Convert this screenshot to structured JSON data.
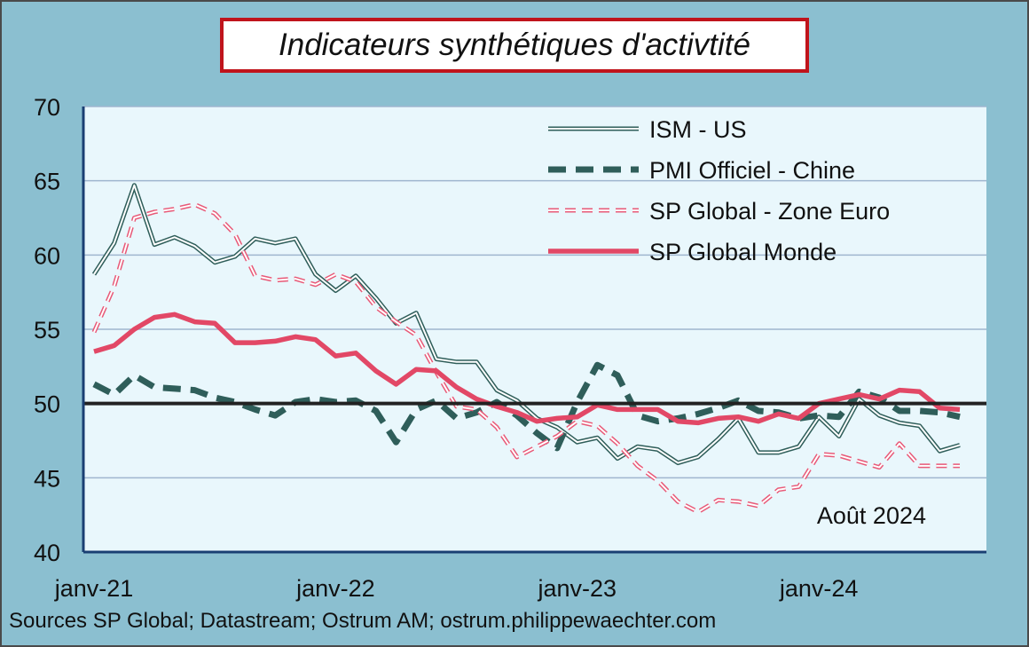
{
  "title": "Indicateurs synthétiques d'activtité",
  "source": "Sources SP Global; Datastream; Ostrum AM; ostrum.philippewaechter.com",
  "chart_data": {
    "type": "line",
    "title": "Indicateurs synthétiques d'activtité",
    "annotation": "Août 2024",
    "xlabel": "",
    "ylabel": "",
    "ylim": [
      40,
      70
    ],
    "yticks": [
      40,
      45,
      50,
      55,
      60,
      65,
      70
    ],
    "x_tick_labels": [
      "janv-21",
      "janv-22",
      "janv-23",
      "janv-24"
    ],
    "x_tick_index": [
      0,
      12,
      24,
      36
    ],
    "x_start": "2021-01",
    "x_end": "2024-08",
    "reference_line": 50,
    "grid": true,
    "legend_position": "top-right",
    "colors": {
      "ism": "#2f5e5a",
      "china": "#2f5e5a",
      "euro": "#e85a78",
      "world": "#e24866",
      "reference": "#222222",
      "plot_bg": "#e9f7fc",
      "grid": "#9fb6cf"
    },
    "series": [
      {
        "name": "ISM - US",
        "key": "ism",
        "values": [
          58.7,
          60.8,
          64.7,
          60.7,
          61.2,
          60.6,
          59.5,
          59.9,
          61.1,
          60.8,
          61.1,
          58.7,
          57.6,
          58.6,
          57.1,
          55.4,
          56.1,
          53.0,
          52.8,
          52.8,
          50.9,
          50.2,
          49.0,
          48.4,
          47.4,
          47.7,
          46.3,
          47.1,
          46.9,
          46.0,
          46.4,
          47.6,
          49.0,
          46.7,
          46.7,
          47.1,
          49.1,
          47.8,
          50.3,
          49.2,
          48.7,
          48.5,
          46.8,
          47.2
        ]
      },
      {
        "name": "PMI Officiel - Chine",
        "key": "china",
        "values": [
          51.3,
          50.6,
          51.9,
          51.1,
          51.0,
          50.9,
          50.4,
          50.1,
          49.6,
          49.2,
          50.1,
          50.3,
          50.1,
          50.2,
          49.5,
          47.4,
          49.6,
          50.2,
          49.0,
          49.4,
          50.1,
          49.2,
          48.0,
          47.0,
          50.1,
          52.6,
          51.9,
          49.2,
          48.8,
          49.0,
          49.3,
          49.7,
          50.2,
          49.5,
          49.4,
          49.0,
          49.2,
          49.1,
          50.8,
          50.4,
          49.5,
          49.5,
          49.4,
          49.1
        ]
      },
      {
        "name": "SP Global - Zone Euro",
        "key": "euro",
        "values": [
          54.8,
          57.9,
          62.5,
          62.9,
          63.1,
          63.4,
          62.8,
          61.4,
          58.6,
          58.3,
          58.4,
          58.0,
          58.7,
          58.2,
          56.5,
          55.5,
          54.6,
          52.1,
          49.8,
          49.6,
          48.4,
          46.4,
          47.1,
          47.8,
          48.8,
          48.5,
          47.3,
          45.8,
          44.8,
          43.4,
          42.7,
          43.5,
          43.4,
          43.1,
          44.2,
          44.4,
          46.6,
          46.5,
          46.1,
          45.7,
          47.3,
          45.8,
          45.8,
          45.8
        ]
      },
      {
        "name": "SP Global Monde",
        "key": "world",
        "values": [
          53.5,
          53.9,
          55.0,
          55.8,
          56.0,
          55.5,
          55.4,
          54.1,
          54.1,
          54.2,
          54.5,
          54.3,
          53.2,
          53.4,
          52.2,
          51.3,
          52.3,
          52.2,
          51.1,
          50.3,
          49.8,
          49.4,
          48.8,
          49.0,
          49.1,
          49.9,
          49.6,
          49.6,
          49.6,
          48.8,
          48.7,
          49.0,
          49.1,
          48.8,
          49.3,
          49.0,
          50.0,
          50.3,
          50.6,
          50.3,
          50.9,
          50.8,
          49.7,
          49.6
        ]
      }
    ]
  }
}
